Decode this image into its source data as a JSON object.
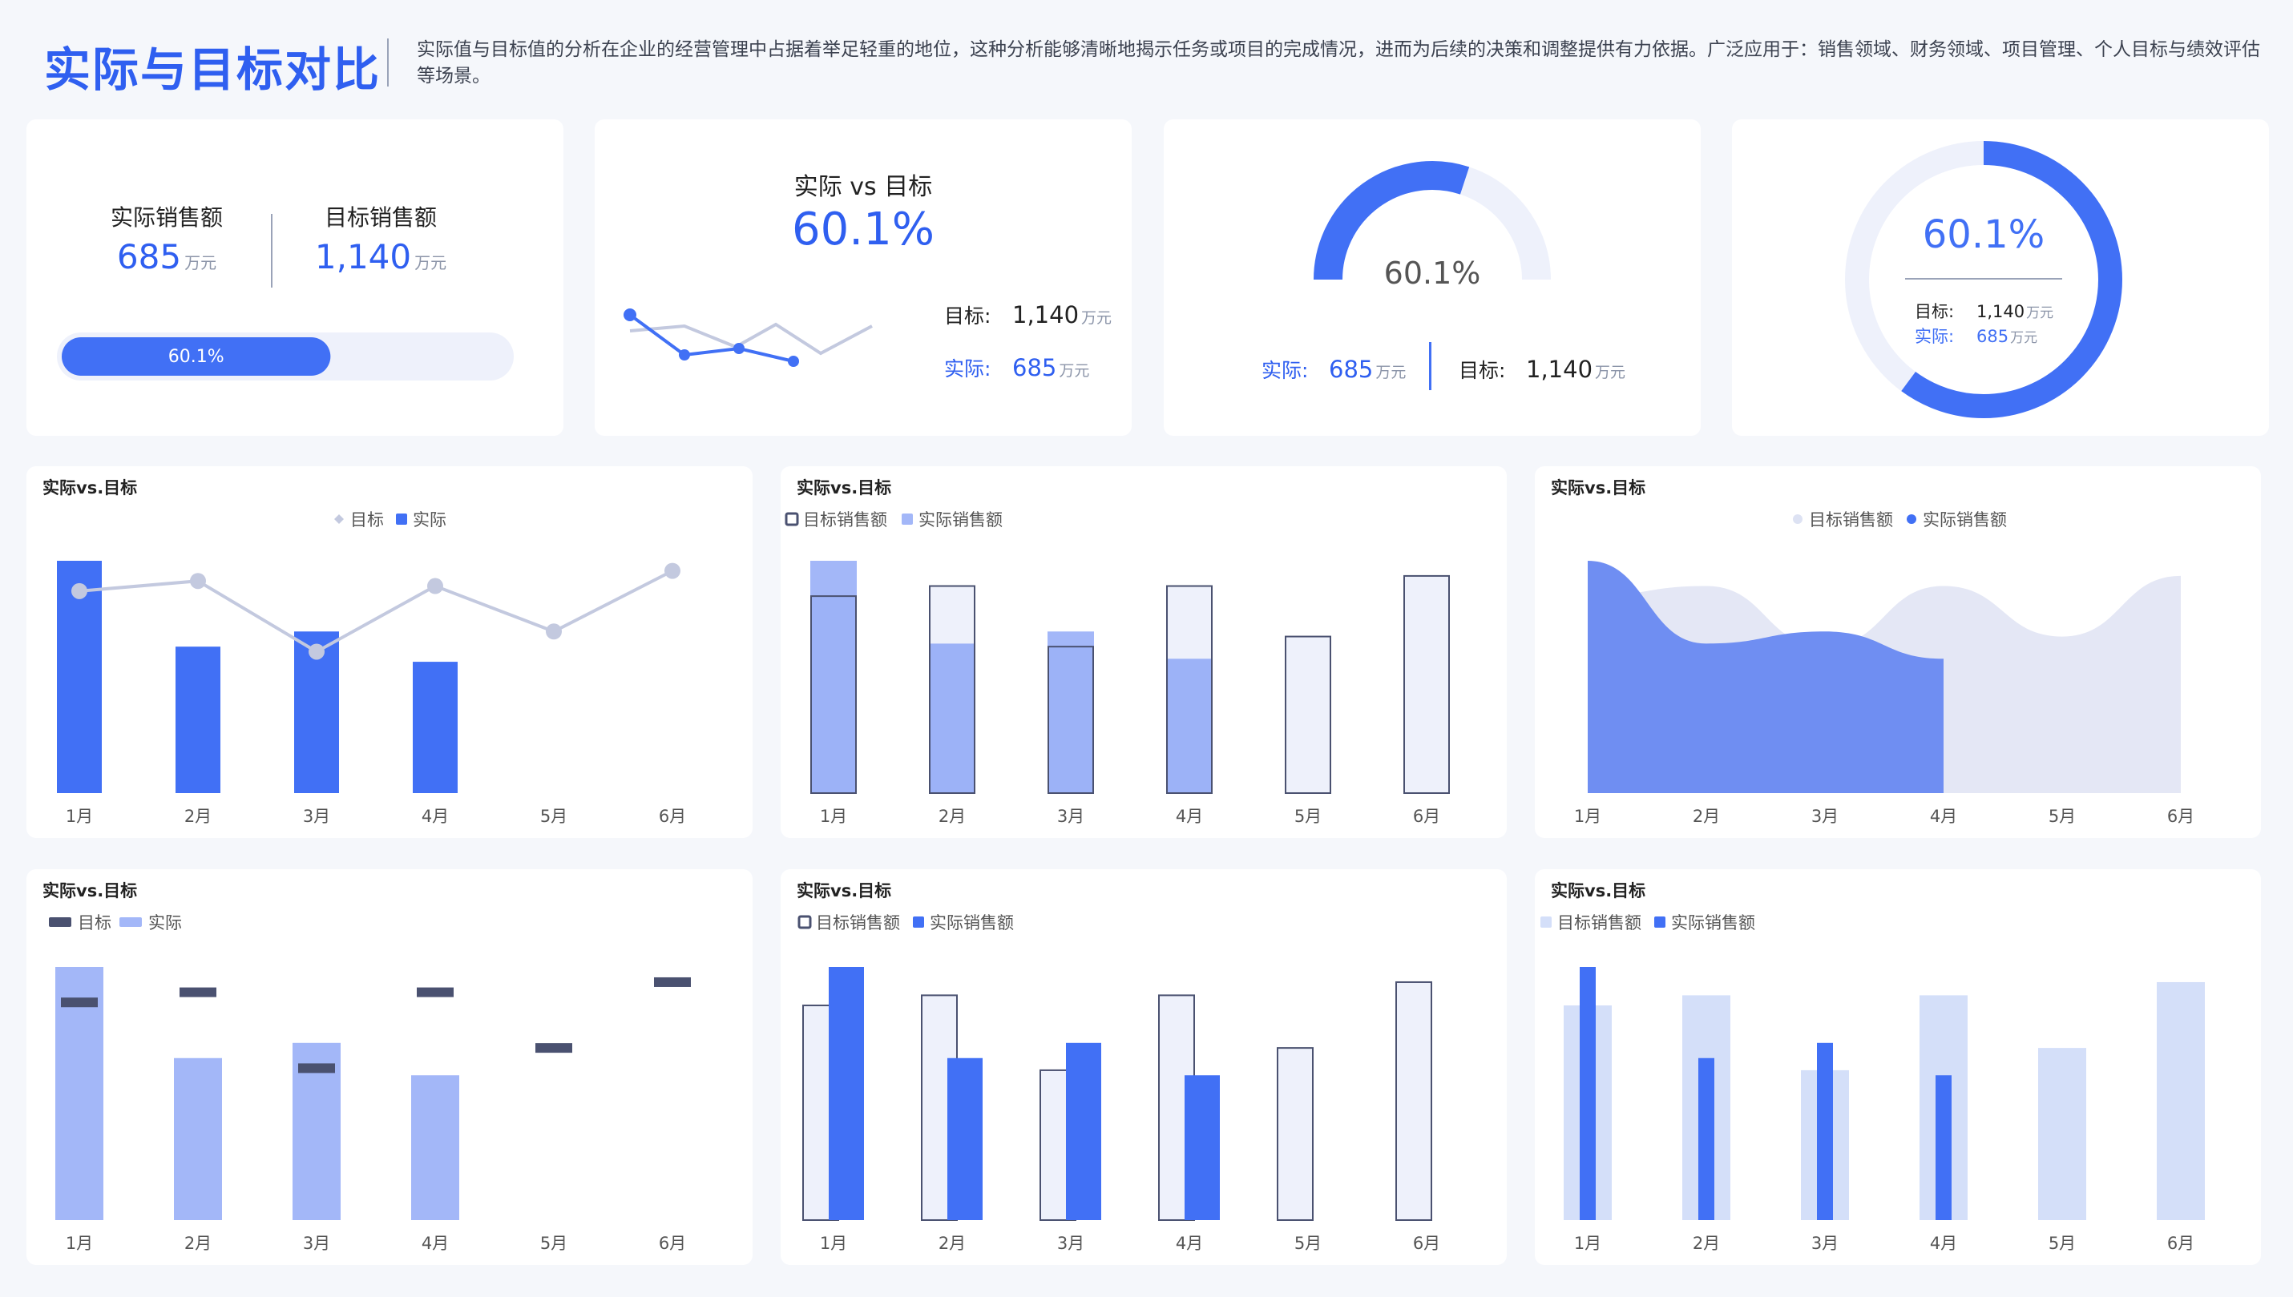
{
  "header": {
    "title": "实际与目标对比",
    "description": "实际值与目标值的分析在企业的经营管理中占据着举足轻重的地位，这种分析能够清晰地揭示任务或项目的完成情况，进而为后续的决策和调整提供有力依据。广泛应用于：销售领域、财务领域、项目管理、个人目标与绩效评估等场景。"
  },
  "colors": {
    "accent": "#4170f5",
    "light_blue": "#a3b7f8",
    "pale": "#eef1fb",
    "grey_line": "#c3c9df",
    "dark_outline": "#4a5170",
    "target_bar": "#4a5170"
  },
  "kpi1": {
    "actual_label": "实际销售额",
    "actual_value": "685",
    "unit": "万元",
    "target_label": "目标销售额",
    "target_value": "1,140",
    "progress_label": "60.1%",
    "progress": 0.601
  },
  "kpi2": {
    "title": "实际 vs 目标",
    "percent": "60.1%",
    "target_label": "目标:",
    "target_value": "1,140",
    "actual_label": "实际:",
    "actual_value": "685",
    "unit": "万元"
  },
  "kpi3": {
    "percent": "60.1%",
    "progress": 0.601,
    "actual_label": "实际:",
    "actual_value": "685",
    "target_label": "目标:",
    "target_value": "1,140",
    "unit": "万元"
  },
  "kpi4": {
    "percent": "60.1%",
    "progress": 0.601,
    "target_label": "目标:",
    "target_value": "1,140",
    "actual_label": "实际:",
    "actual_value": "685",
    "unit": "万元"
  },
  "chart_data": [
    {
      "id": "c1",
      "type": "bar",
      "title": "实际vs.目标",
      "categories": [
        "1月",
        "2月",
        "3月",
        "4月",
        "5月",
        "6月"
      ],
      "series": [
        {
          "name": "目标",
          "type": "line",
          "values": [
            200,
            210,
            140,
            205,
            160,
            220
          ]
        },
        {
          "name": "实际",
          "type": "bar",
          "values": [
            230,
            145,
            160,
            130,
            null,
            null
          ]
        }
      ],
      "ylim": [
        0,
        230
      ],
      "legend": "top-center"
    },
    {
      "id": "c2",
      "type": "bar",
      "title": "实际vs.目标",
      "categories": [
        "1月",
        "2月",
        "3月",
        "4月",
        "5月",
        "6月"
      ],
      "series": [
        {
          "name": "目标销售额",
          "values": [
            195,
            205,
            145,
            205,
            155,
            215
          ]
        },
        {
          "name": "实际销售额",
          "values": [
            230,
            148,
            160,
            133,
            null,
            null
          ]
        }
      ],
      "ylim": [
        0,
        230
      ],
      "legend": "top-left"
    },
    {
      "id": "c3",
      "type": "area",
      "title": "实际vs.目标",
      "categories": [
        "1月",
        "2月",
        "3月",
        "4月",
        "5月",
        "6月"
      ],
      "series": [
        {
          "name": "目标销售额",
          "values": [
            195,
            205,
            145,
            205,
            155,
            215
          ]
        },
        {
          "name": "实际销售额",
          "values": [
            230,
            148,
            160,
            133,
            null,
            null
          ]
        }
      ],
      "ylim": [
        0,
        230
      ],
      "legend": "top-center"
    },
    {
      "id": "c4",
      "type": "bar",
      "title": "实际vs.目标",
      "categories": [
        "1月",
        "2月",
        "3月",
        "4月",
        "5月",
        "6月"
      ],
      "series": [
        {
          "name": "目标",
          "values": [
            215,
            225,
            150,
            225,
            170,
            235
          ]
        },
        {
          "name": "实际",
          "values": [
            250,
            160,
            175,
            143,
            null,
            null
          ]
        }
      ],
      "ylim": [
        0,
        250
      ],
      "legend": "top-left"
    },
    {
      "id": "c5",
      "type": "bar",
      "title": "实际vs.目标",
      "categories": [
        "1月",
        "2月",
        "3月",
        "4月",
        "5月",
        "6月"
      ],
      "series": [
        {
          "name": "目标销售额",
          "values": [
            212,
            222,
            148,
            222,
            170,
            235
          ]
        },
        {
          "name": "实际销售额",
          "values": [
            250,
            160,
            175,
            143,
            null,
            null
          ]
        }
      ],
      "ylim": [
        0,
        250
      ],
      "legend": "top-left"
    },
    {
      "id": "c6",
      "type": "bar",
      "title": "实际vs.目标",
      "categories": [
        "1月",
        "2月",
        "3月",
        "4月",
        "5月",
        "6月"
      ],
      "series": [
        {
          "name": "目标销售额",
          "values": [
            212,
            222,
            148,
            222,
            170,
            235
          ]
        },
        {
          "name": "实际销售额",
          "values": [
            250,
            160,
            175,
            143,
            null,
            null
          ]
        }
      ],
      "ylim": [
        0,
        250
      ],
      "legend": "top-left"
    }
  ]
}
